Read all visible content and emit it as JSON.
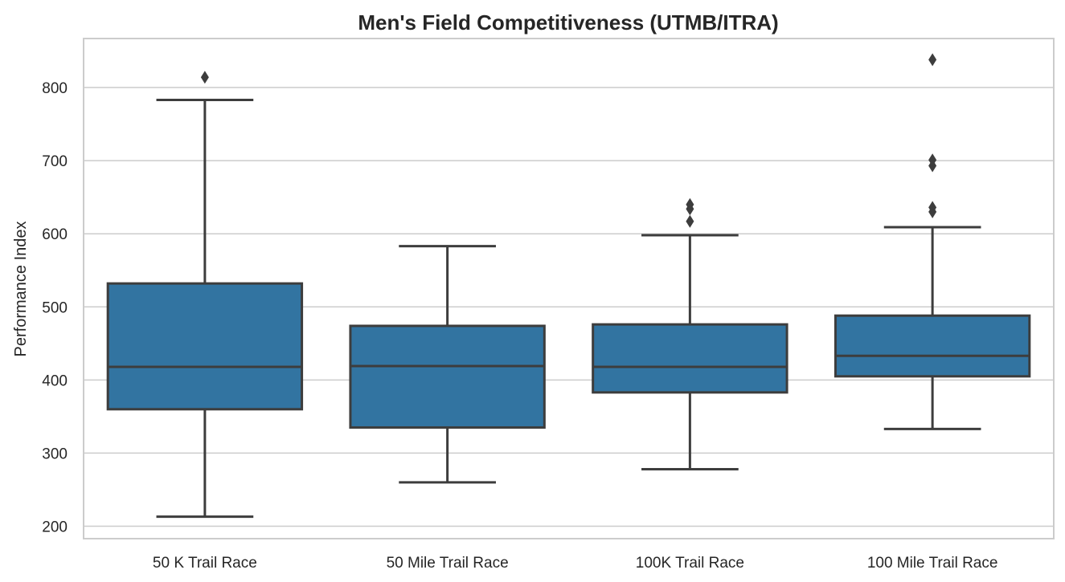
{
  "chart_data": {
    "type": "box",
    "title": "Men's Field Competitiveness (UTMB/ITRA)",
    "xlabel": "",
    "ylabel": "Performance Index",
    "ylim": [
      183,
      867
    ],
    "yticks": [
      200,
      300,
      400,
      500,
      600,
      700,
      800
    ],
    "grid": true,
    "box_color": "#3274a1",
    "line_color": "#3d3d3d",
    "categories": [
      "50 K Trail Race",
      "50 Mile Trail Race",
      "100K Trail Race",
      "100 Mile Trail Race"
    ],
    "boxes": [
      {
        "category": "50 K Trail Race",
        "whisker_low": 213,
        "q1": 360,
        "median": 418,
        "q3": 532,
        "whisker_high": 783,
        "outliers": [
          814
        ]
      },
      {
        "category": "50 Mile Trail Race",
        "whisker_low": 260,
        "q1": 335,
        "median": 419,
        "q3": 474,
        "whisker_high": 583,
        "outliers": []
      },
      {
        "category": "100K Trail Race",
        "whisker_low": 278,
        "q1": 383,
        "median": 418,
        "q3": 476,
        "whisker_high": 598,
        "outliers": [
          617,
          634,
          640
        ]
      },
      {
        "category": "100 Mile Trail Race",
        "whisker_low": 333,
        "q1": 405,
        "median": 433,
        "q3": 488,
        "whisker_high": 609,
        "outliers": [
          630,
          636,
          693,
          701,
          838
        ]
      }
    ]
  }
}
